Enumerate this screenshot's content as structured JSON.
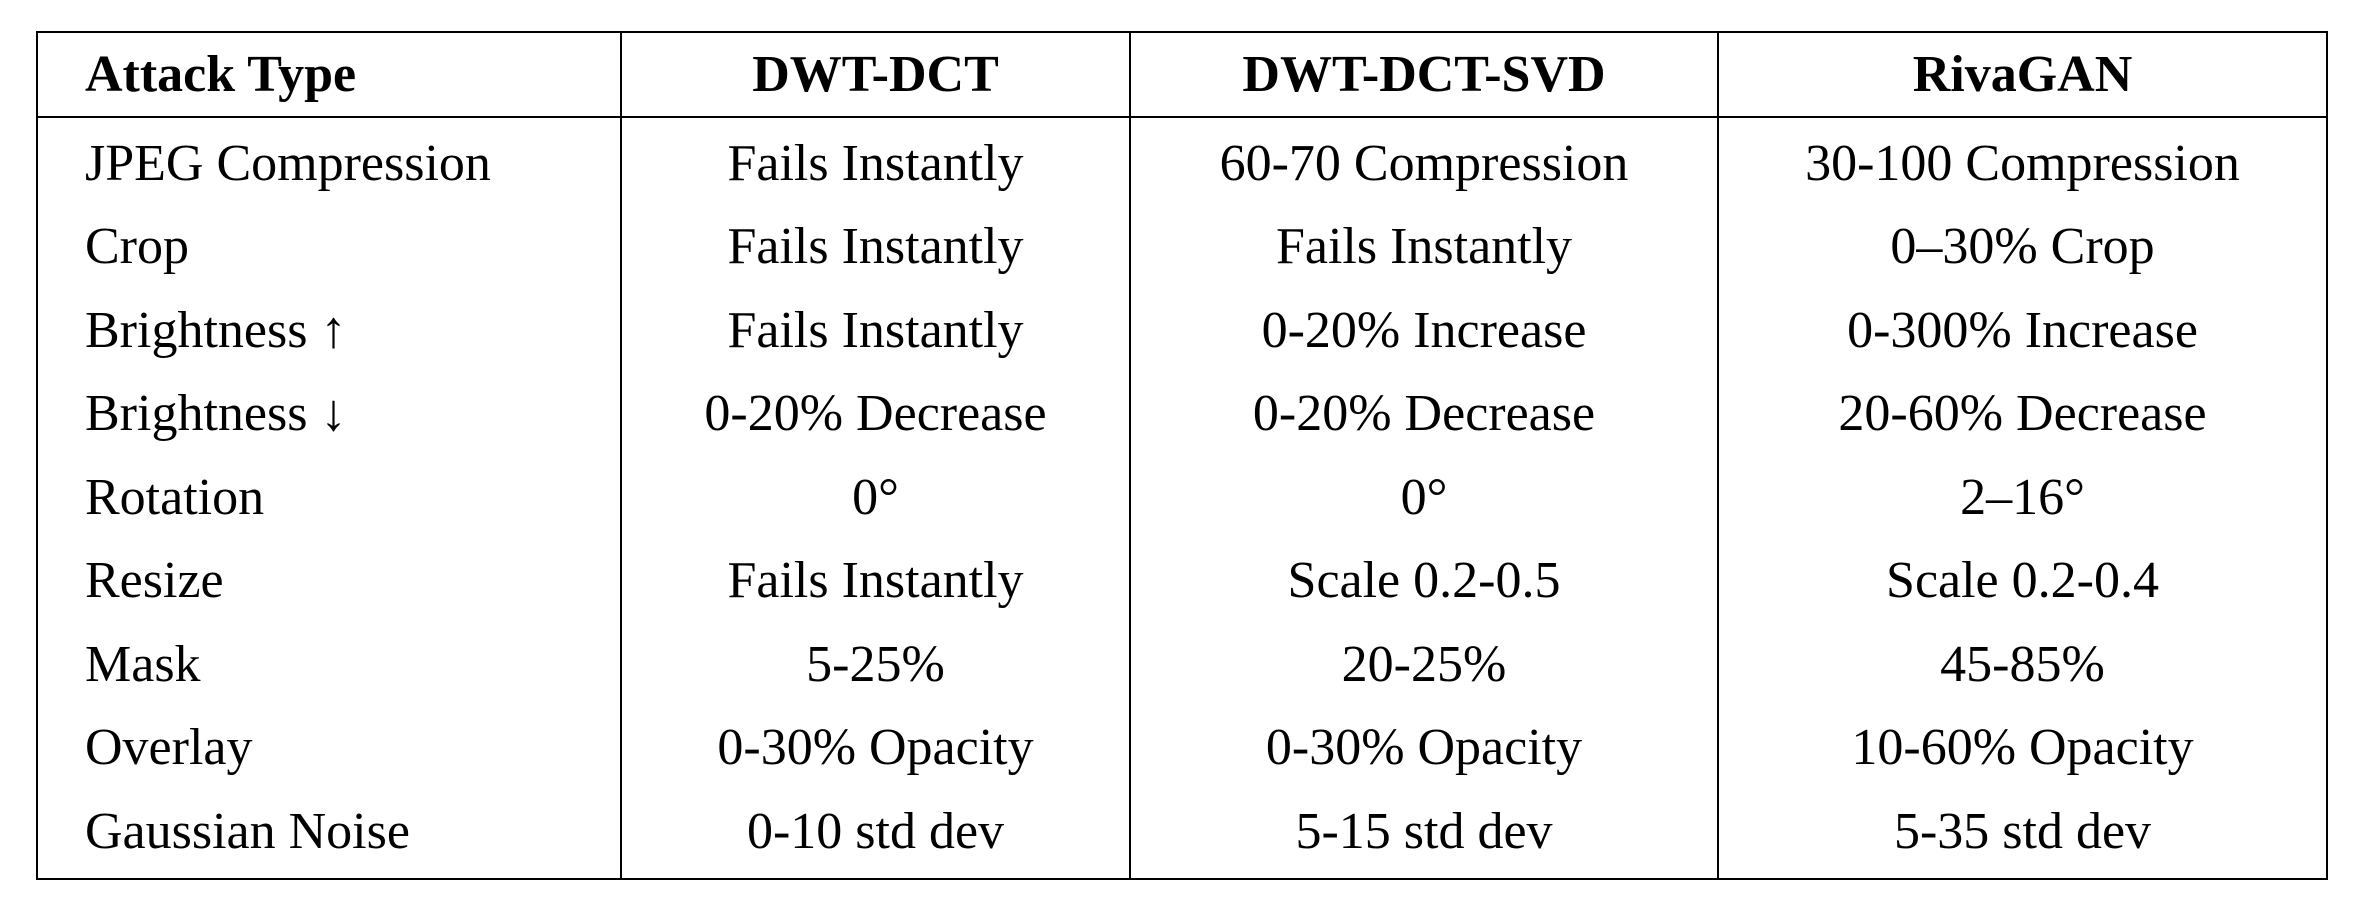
{
  "table": {
    "headers": [
      "Attack Type",
      "DWT-DCT",
      "DWT-DCT-SVD",
      "RivaGAN"
    ],
    "rows": [
      [
        "JPEG Compression",
        "Fails Instantly",
        "60-70 Compression",
        "30-100 Compression"
      ],
      [
        "Crop",
        "Fails Instantly",
        "Fails Instantly",
        "0–30% Crop"
      ],
      [
        "Brightness ↑",
        "Fails Instantly",
        "0-20% Increase",
        "0-300% Increase"
      ],
      [
        "Brightness ↓",
        "0-20% Decrease",
        "0-20% Decrease",
        "20-60% Decrease"
      ],
      [
        "Rotation",
        "0°",
        "0°",
        "2–16°"
      ],
      [
        "Resize",
        "Fails Instantly",
        "Scale 0.2-0.5",
        "Scale 0.2-0.4"
      ],
      [
        "Mask",
        "5-25%",
        "20-25%",
        "45-85%"
      ],
      [
        "Overlay",
        "0-30% Opacity",
        "0-30% Opacity",
        "10-60% Opacity"
      ],
      [
        "Gaussian Noise",
        "0-10 std dev",
        "5-15 std dev",
        "5-35 std dev"
      ]
    ]
  }
}
